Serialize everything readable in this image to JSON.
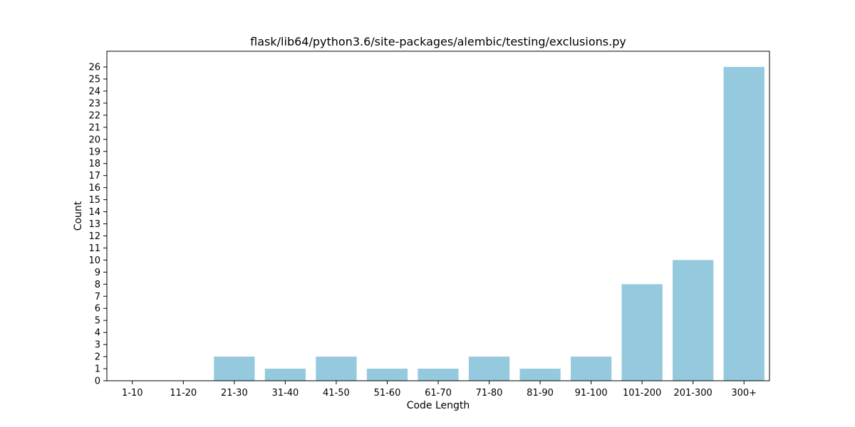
{
  "chart_data": {
    "type": "bar",
    "title": "flask/lib64/python3.6/site-packages/alembic/testing/exclusions.py",
    "xlabel": "Code Length",
    "ylabel": "Count",
    "categories": [
      "1-10",
      "11-20",
      "21-30",
      "31-40",
      "41-50",
      "51-60",
      "61-70",
      "71-80",
      "81-90",
      "91-100",
      "101-200",
      "201-300",
      "300+"
    ],
    "values": [
      0,
      0,
      2,
      1,
      2,
      1,
      1,
      2,
      1,
      2,
      8,
      10,
      26
    ],
    "ylim": [
      0,
      27.3
    ],
    "yticks": [
      0,
      1,
      2,
      3,
      4,
      5,
      6,
      7,
      8,
      9,
      10,
      11,
      12,
      13,
      14,
      15,
      16,
      17,
      18,
      19,
      20,
      21,
      22,
      23,
      24,
      25,
      26
    ],
    "grid": false,
    "colors": {
      "bar": "#95c9de",
      "axis": "#000000",
      "text": "#000000"
    }
  }
}
